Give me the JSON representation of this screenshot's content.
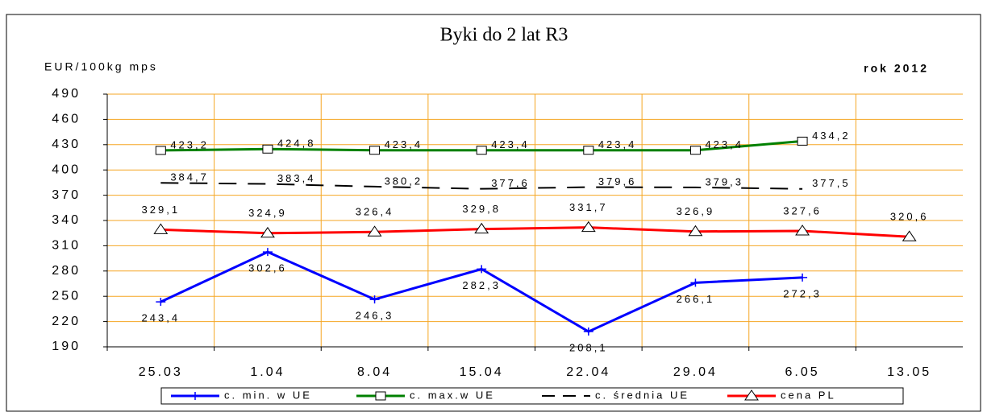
{
  "chart_data": {
    "type": "line",
    "title": "Byki do 2 lat R3",
    "y_label": "EUR/100kg mps",
    "annotation": "rok 2012",
    "categories": [
      "25.03",
      "1.04",
      "8.04",
      "15.04",
      "22.04",
      "29.04",
      "6.05",
      "13.05"
    ],
    "ylim": [
      190,
      490
    ],
    "yticks": [
      190,
      220,
      250,
      280,
      310,
      340,
      370,
      400,
      430,
      460,
      490
    ],
    "grid": true,
    "legend": "bottom",
    "series": [
      {
        "name": "c. min. w UE",
        "color": "#0000ff",
        "marker": "plus",
        "dash": false,
        "values": [
          243.4,
          302.6,
          246.3,
          282.3,
          208.1,
          266.1,
          272.3,
          null
        ],
        "value_labels": [
          "243,4",
          "302,6",
          "246,3",
          "282,3",
          "208,1",
          "266,1",
          "272,3",
          null
        ]
      },
      {
        "name": "c. max.w UE",
        "color": "#008000",
        "marker": "square",
        "dash": false,
        "values": [
          423.2,
          424.8,
          423.4,
          423.4,
          423.4,
          423.4,
          434.2,
          null
        ],
        "value_labels": [
          "423,2",
          "424,8",
          "423,4",
          "423,4",
          "423,4",
          "423,4",
          "434,2",
          null
        ]
      },
      {
        "name": "c. średnia UE",
        "color": "#000000",
        "marker": "none",
        "dash": true,
        "values": [
          384.7,
          383.4,
          380.2,
          377.6,
          379.6,
          379.3,
          377.5,
          null
        ],
        "value_labels": [
          "384,7",
          "383,4",
          "380,2",
          "377,6",
          "379,6",
          "379,3",
          "377,5",
          null
        ]
      },
      {
        "name": "cena PL",
        "color": "#ff0000",
        "marker": "triangle",
        "dash": false,
        "values": [
          329.1,
          324.9,
          326.4,
          329.8,
          331.7,
          326.9,
          327.6,
          320.6
        ],
        "value_labels": [
          "329,1",
          "324,9",
          "326,4",
          "329,8",
          "331,7",
          "326,9",
          "327,6",
          "320,6"
        ]
      }
    ]
  }
}
